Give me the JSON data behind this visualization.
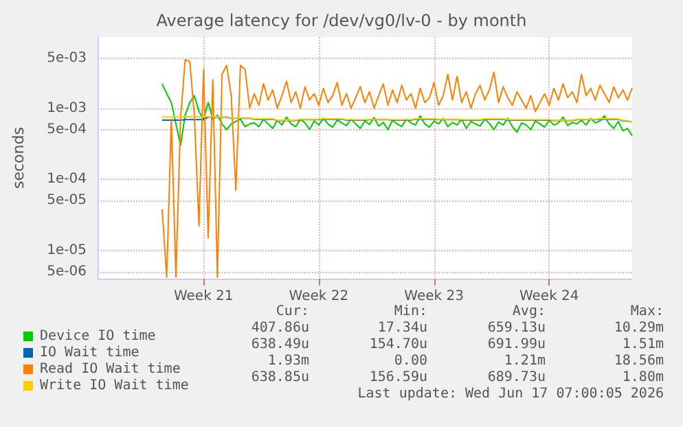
{
  "chart_data": {
    "type": "line",
    "title": "Average latency for /dev/vg0/lv-0 - by month",
    "ylabel": "seconds",
    "log": true,
    "grid": true,
    "legend": "bottom",
    "marker": "none",
    "categories": [
      null,
      null,
      null,
      null,
      null,
      null,
      null,
      null,
      null,
      null,
      null,
      null,
      null,
      null,
      null,
      null,
      null,
      null,
      null,
      null,
      null,
      null,
      null,
      "Week 21",
      null,
      null,
      null,
      null,
      null,
      null,
      null,
      null,
      null,
      null,
      null,
      null,
      null,
      null,
      null,
      null,
      null,
      null,
      null,
      null,
      null,
      null,
      null,
      null,
      "Week 22",
      null,
      null,
      null,
      null,
      null,
      null,
      null,
      null,
      null,
      null,
      null,
      null,
      null,
      null,
      null,
      null,
      null,
      null,
      null,
      null,
      null,
      null,
      null,
      null,
      "Week 23",
      null,
      null,
      null,
      null,
      null,
      null,
      null,
      null,
      null,
      null,
      null,
      null,
      null,
      null,
      null,
      null,
      null,
      null,
      null,
      null,
      null,
      null,
      null,
      null,
      "Week 24",
      null,
      null,
      null,
      null,
      null,
      null,
      null,
      null,
      null,
      null,
      null,
      null,
      null,
      null,
      null,
      null,
      null,
      null
    ],
    "ylim": [
      4e-06,
      0.01
    ],
    "yticks": [
      {
        "value": 5e-06,
        "label": "5e-06"
      },
      {
        "value": 1e-05,
        "label": "1e-05"
      },
      {
        "value": 5e-05,
        "label": "5e-05"
      },
      {
        "value": 0.0001,
        "label": "1e-04"
      },
      {
        "value": 0.0005,
        "label": "5e-04"
      },
      {
        "value": 0.001,
        "label": "1e-03"
      },
      {
        "value": 0.005,
        "label": "5e-03"
      }
    ],
    "series": [
      {
        "name": "Device IO time",
        "color": "#00cc00",
        "values": [
          null,
          null,
          null,
          null,
          null,
          null,
          null,
          null,
          null,
          null,
          null,
          null,
          null,
          null,
          0.0022,
          0.0016,
          0.0012,
          0.0006,
          0.0003,
          0.0008,
          0.0012,
          0.0015,
          0.0009,
          0.0007,
          0.0012,
          0.0007,
          0.0008,
          0.0006,
          0.0005,
          0.0006,
          0.00065,
          0.0007,
          0.00055,
          0.0006,
          0.00062,
          0.00055,
          0.0007,
          0.0006,
          0.00052,
          0.00068,
          0.00058,
          0.00075,
          0.0006,
          0.00055,
          0.0007,
          0.00062,
          0.0005,
          0.00066,
          0.00058,
          0.00072,
          0.0006,
          0.00054,
          0.00068,
          0.00062,
          0.00057,
          0.0007,
          0.0006,
          0.00052,
          0.00066,
          0.00059,
          0.00074,
          0.00056,
          0.00063,
          0.0005,
          0.00068,
          0.0006,
          0.00055,
          0.0007,
          0.00062,
          0.00058,
          0.00078,
          0.0006,
          0.00054,
          0.00066,
          0.0006,
          0.00072,
          0.00055,
          0.00063,
          0.00058,
          0.0007,
          0.00052,
          0.00065,
          0.0006,
          0.00056,
          0.0007,
          0.00061,
          0.0005,
          0.00064,
          0.00058,
          0.00072,
          0.00055,
          0.00046,
          0.00062,
          0.00058,
          0.0005,
          0.00066,
          0.0006,
          0.00054,
          0.00068,
          0.00058,
          0.00062,
          0.00075,
          0.00057,
          0.00063,
          0.0006,
          0.00068,
          0.00058,
          0.00072,
          0.00062,
          0.00066,
          0.00078,
          0.0006,
          0.00052,
          0.00065,
          0.00048,
          0.00052,
          0.00041
        ]
      },
      {
        "name": "IO Wait time",
        "color": "#0066b3",
        "values": [
          null,
          null,
          null,
          null,
          null,
          null,
          null,
          null,
          null,
          null,
          null,
          null,
          null,
          null,
          0.00068,
          0.00068,
          0.00068,
          0.00068,
          0.00068,
          0.00069,
          0.00069,
          0.00069,
          0.00069,
          0.00069,
          0.00075,
          0.00075,
          0.00075,
          0.00075,
          0.00075,
          0.00072,
          0.00072,
          0.00072,
          0.00072,
          0.00072,
          0.0007,
          0.0007,
          0.0007,
          0.0007,
          0.0007,
          0.00067,
          0.00067,
          0.00067,
          0.00067,
          0.00067,
          0.00069,
          0.00069,
          0.00069,
          0.00069,
          0.00069,
          0.0007,
          0.0007,
          0.0007,
          0.0007,
          0.0007,
          0.00068,
          0.00068,
          0.00068,
          0.00068,
          0.00068,
          0.00069,
          0.00069,
          0.00069,
          0.00069,
          0.00069,
          0.00068,
          0.00068,
          0.00068,
          0.00068,
          0.00068,
          0.0007,
          0.0007,
          0.0007,
          0.0007,
          0.0007,
          0.00069,
          0.00069,
          0.00069,
          0.00069,
          0.00069,
          0.00068,
          0.00068,
          0.00068,
          0.00068,
          0.00068,
          0.0007,
          0.0007,
          0.0007,
          0.0007,
          0.0007,
          0.00068,
          0.00068,
          0.00068,
          0.00068,
          0.00068,
          0.00068,
          0.00068,
          0.00068,
          0.00068,
          0.00068,
          0.00067,
          0.00067,
          0.00067,
          0.00067,
          0.00067,
          0.00069,
          0.00069,
          0.00069,
          0.00069,
          0.00069,
          0.0007,
          0.0007,
          0.0007,
          0.0007,
          0.0007,
          0.00066,
          0.00066,
          0.00064
        ]
      },
      {
        "name": "Read IO Wait time",
        "color": "#ff8000",
        "values": [
          null,
          null,
          null,
          null,
          null,
          null,
          null,
          null,
          null,
          null,
          null,
          null,
          null,
          null,
          3.8e-05,
          4.2e-06,
          0.0007,
          4.2e-06,
          0.0007,
          0.0048,
          0.0045,
          0.0008,
          2.2e-05,
          0.0035,
          1.5e-05,
          0.0025,
          4.2e-06,
          0.003,
          0.004,
          0.0015,
          7e-05,
          0.004,
          0.0035,
          0.001,
          0.0016,
          0.0011,
          0.0022,
          0.0013,
          0.0018,
          0.001,
          0.0015,
          0.0024,
          0.0012,
          0.0017,
          0.001,
          0.002,
          0.0013,
          0.0016,
          0.0011,
          0.0019,
          0.0012,
          0.0015,
          0.0023,
          0.0011,
          0.0016,
          0.001,
          0.0014,
          0.002,
          0.0012,
          0.0017,
          0.001,
          0.0015,
          0.0022,
          0.0011,
          0.0018,
          0.0012,
          0.0021,
          0.0013,
          0.0016,
          0.001,
          0.0019,
          0.0012,
          0.0014,
          0.0023,
          0.0011,
          0.0015,
          0.003,
          0.0013,
          0.0028,
          0.0012,
          0.0017,
          0.001,
          0.0016,
          0.0021,
          0.0013,
          0.0018,
          0.0032,
          0.0012,
          0.002,
          0.0014,
          0.0011,
          0.0017,
          0.0013,
          0.001,
          0.0015,
          0.0009,
          0.0012,
          0.0016,
          0.0011,
          0.0019,
          0.0013,
          0.0022,
          0.0014,
          0.0017,
          0.0012,
          0.003,
          0.0015,
          0.0019,
          0.0013,
          0.0021,
          0.0016,
          0.0012,
          0.002,
          0.0014,
          0.0018,
          0.0013,
          0.00193
        ]
      },
      {
        "name": "Write IO Wait time",
        "color": "#ffcc00",
        "values": [
          null,
          null,
          null,
          null,
          null,
          null,
          null,
          null,
          null,
          null,
          null,
          null,
          null,
          null,
          0.00075,
          0.00075,
          0.00075,
          0.00075,
          0.00075,
          0.00076,
          0.00076,
          0.00076,
          0.00076,
          0.00076,
          0.00076,
          0.00076,
          0.00076,
          0.00076,
          0.00076,
          0.00073,
          0.00073,
          0.00073,
          0.00073,
          0.00073,
          0.00071,
          0.00071,
          0.00071,
          0.00071,
          0.00071,
          0.00068,
          0.00068,
          0.00068,
          0.00068,
          0.00068,
          0.0007,
          0.0007,
          0.0007,
          0.0007,
          0.0007,
          0.00071,
          0.00071,
          0.00071,
          0.00071,
          0.00071,
          0.00069,
          0.00069,
          0.00069,
          0.00069,
          0.00069,
          0.0007,
          0.0007,
          0.0007,
          0.0007,
          0.0007,
          0.00069,
          0.00069,
          0.00069,
          0.00069,
          0.00069,
          0.00071,
          0.00071,
          0.00071,
          0.00071,
          0.00071,
          0.0007,
          0.0007,
          0.0007,
          0.0007,
          0.0007,
          0.00069,
          0.00069,
          0.00069,
          0.00069,
          0.00069,
          0.00071,
          0.00071,
          0.00071,
          0.00071,
          0.00071,
          0.00069,
          0.00069,
          0.00069,
          0.00069,
          0.00069,
          0.00069,
          0.00069,
          0.00069,
          0.00069,
          0.00069,
          0.00068,
          0.00068,
          0.00068,
          0.00068,
          0.00068,
          0.0007,
          0.0007,
          0.0007,
          0.0007,
          0.0007,
          0.00071,
          0.00071,
          0.00071,
          0.00071,
          0.00071,
          0.00067,
          0.00067,
          0.00064
        ]
      }
    ],
    "annotations": [
      "Cur:",
      "Min:",
      "Avg:",
      "Max:",
      "407.86u",
      "17.34u",
      "659.13u",
      "10.29m",
      "638.49u",
      "154.70u",
      "691.99u",
      "1.51m",
      "1.93m",
      "0.00",
      "1.21m",
      "18.56m",
      "638.85u",
      "156.59u",
      "689.73u",
      "1.80m",
      "Last update: Wed Jun 17 07:00:05 2026"
    ]
  }
}
